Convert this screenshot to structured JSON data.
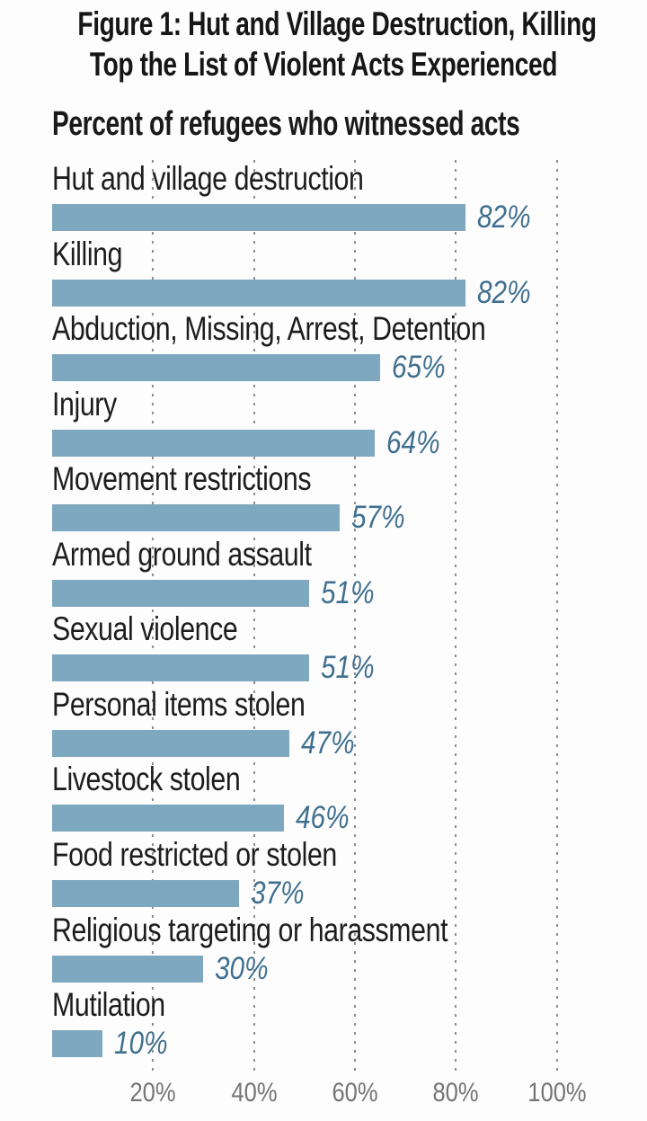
{
  "figure": {
    "title_line1": "Figure 1: Hut and Village Destruction, Killing",
    "title_line2": "Top the List of Violent Acts Experienced",
    "subtitle": "Percent of refugees who witnessed acts"
  },
  "chart_data": {
    "type": "bar",
    "orientation": "horizontal",
    "title": "Figure 1: Hut and Village Destruction, Killing Top the List of Violent Acts Experienced",
    "subtitle": "Percent of refugees who witnessed acts",
    "categories": [
      "Hut and village destruction",
      "Killing",
      "Abduction, Missing, Arrest, Detention",
      "Injury",
      "Movement restrictions",
      "Armed ground assault",
      "Sexual violence",
      "Personal items stolen",
      "Livestock stolen",
      "Food restricted or stolen",
      "Religious targeting or harassment",
      "Mutilation"
    ],
    "values": [
      82,
      82,
      65,
      64,
      57,
      51,
      51,
      47,
      46,
      37,
      30,
      10
    ],
    "value_labels": [
      "82%",
      "82%",
      "65%",
      "64%",
      "57%",
      "51%",
      "51%",
      "47%",
      "46%",
      "37%",
      "30%",
      "10%"
    ],
    "xlabel": "",
    "ylabel": "",
    "x_tick_labels": [
      "20%",
      "40%",
      "60%",
      "80%",
      "100%"
    ],
    "x_tick_values": [
      20,
      40,
      60,
      80,
      100
    ],
    "xlim": [
      0,
      100
    ],
    "grid": "vertical-dotted",
    "legend": "none",
    "colors": {
      "bar_fill": "#7ea8bf",
      "value_label_text": "#40708f",
      "category_label_text": "#1d1d1d",
      "axis_tick_text": "#757575",
      "gridline": "#8f8f8f",
      "title_text": "#161616",
      "background": "#fdfdfd"
    }
  }
}
